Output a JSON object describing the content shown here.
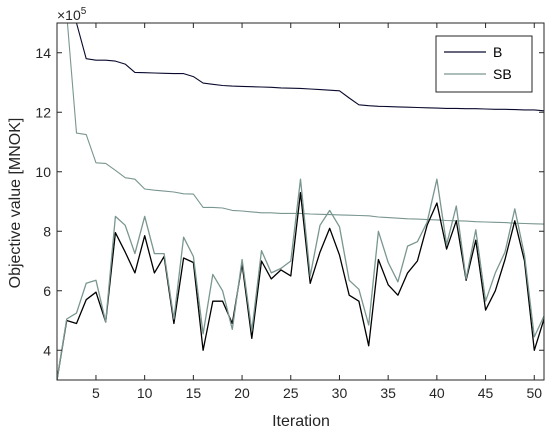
{
  "chart_data": {
    "type": "line",
    "xlabel": "Iteration",
    "ylabel": "Objective value [MNOK]",
    "multiplier_base": "×10",
    "multiplier_exp": "5",
    "xlim": [
      1,
      51
    ],
    "ylim": [
      300000,
      1500000
    ],
    "x_ticks": [
      5,
      10,
      15,
      20,
      25,
      30,
      35,
      40,
      45,
      50
    ],
    "y_ticks": [
      400000,
      600000,
      800000,
      1000000,
      1200000,
      1400000
    ],
    "y_tick_labels": [
      "4",
      "6",
      "8",
      "10",
      "12",
      "14"
    ],
    "legend_position": "top-right",
    "x": [
      1,
      2,
      3,
      4,
      5,
      6,
      7,
      8,
      9,
      10,
      11,
      12,
      13,
      14,
      15,
      16,
      17,
      18,
      19,
      20,
      21,
      22,
      23,
      24,
      25,
      26,
      27,
      28,
      29,
      30,
      31,
      32,
      33,
      34,
      35,
      36,
      37,
      38,
      39,
      40,
      41,
      42,
      43,
      44,
      45,
      46,
      47,
      48,
      49,
      50,
      51
    ],
    "series": [
      {
        "name": "B",
        "kind": "best",
        "color": "#0a0a2e",
        "values": [
          1580000,
          1520000,
          1500000,
          1380000,
          1375000,
          1375000,
          1372000,
          1362000,
          1334000,
          1333000,
          1332000,
          1331000,
          1330000,
          1330000,
          1320000,
          1298000,
          1294000,
          1290000,
          1288000,
          1287000,
          1286000,
          1285000,
          1284000,
          1282000,
          1281000,
          1280000,
          1278000,
          1276000,
          1274000,
          1272000,
          1248000,
          1225000,
          1222000,
          1220000,
          1219000,
          1218000,
          1217000,
          1216000,
          1215000,
          1214000,
          1213000,
          1213000,
          1212000,
          1212000,
          1211000,
          1210000,
          1210000,
          1209000,
          1208000,
          1208000,
          1205000
        ]
      },
      {
        "name": "SB",
        "kind": "best",
        "color": "#7a9690",
        "values": [
          1550000,
          1530000,
          1130000,
          1125000,
          1030000,
          1028000,
          1005000,
          980000,
          975000,
          942000,
          938000,
          935000,
          932000,
          926000,
          925000,
          880000,
          880000,
          878000,
          870000,
          868000,
          865000,
          862000,
          862000,
          860000,
          860000,
          860000,
          858000,
          857000,
          856000,
          855000,
          854000,
          853000,
          852000,
          848000,
          846000,
          844000,
          842000,
          841000,
          839000,
          838000,
          836000,
          835000,
          834000,
          832000,
          831000,
          830000,
          829000,
          827000,
          826000,
          825000,
          824000
        ]
      },
      {
        "name": "",
        "kind": "iter",
        "color": "#000000",
        "values": [
          300000,
          500000,
          490000,
          570000,
          595000,
          495000,
          795000,
          730000,
          660000,
          785000,
          660000,
          715000,
          490000,
          710000,
          695000,
          400000,
          565000,
          565000,
          490000,
          690000,
          440000,
          700000,
          640000,
          670000,
          650000,
          930000,
          625000,
          730000,
          810000,
          720000,
          585000,
          565000,
          415000,
          705000,
          620000,
          585000,
          660000,
          700000,
          820000,
          895000,
          740000,
          835000,
          635000,
          770000,
          535000,
          600000,
          705000,
          835000,
          700000,
          400000,
          505000
        ]
      },
      {
        "name": "",
        "kind": "iter",
        "color": "#7a9690",
        "values": [
          300000,
          505000,
          525000,
          625000,
          635000,
          495000,
          850000,
          820000,
          725000,
          850000,
          725000,
          725000,
          505000,
          780000,
          715000,
          455000,
          655000,
          600000,
          470000,
          705000,
          465000,
          735000,
          660000,
          675000,
          700000,
          975000,
          650000,
          820000,
          870000,
          815000,
          635000,
          605000,
          485000,
          800000,
          695000,
          630000,
          750000,
          765000,
          830000,
          975000,
          755000,
          885000,
          640000,
          805000,
          565000,
          660000,
          730000,
          875000,
          720000,
          445000,
          515000
        ]
      }
    ]
  }
}
